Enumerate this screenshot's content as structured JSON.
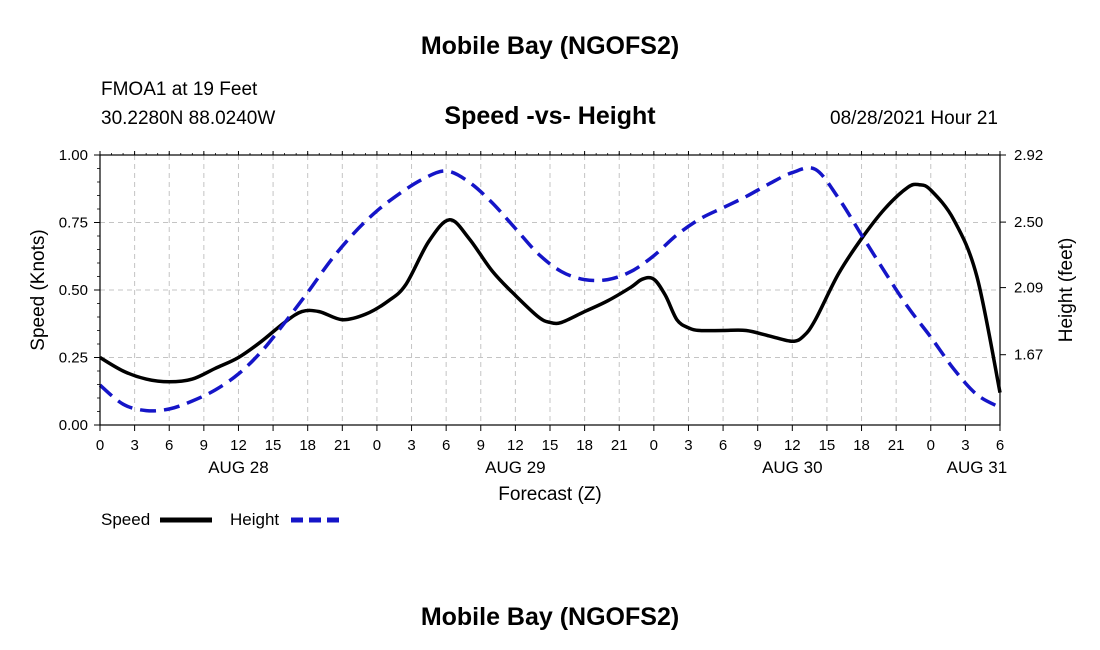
{
  "header": {
    "title_top": "Mobile Bay (NGOFS2)",
    "station": "FMOA1 at 19 Feet",
    "coords": "30.2280N  88.0240W",
    "subtitle": "Speed -vs- Height",
    "datetime": "08/28/2021 Hour 21",
    "title_bottom": "Mobile Bay (NGOFS2)"
  },
  "chart_data": {
    "type": "line",
    "title": "Speed -vs- Height",
    "xlabel": "Forecast (Z)",
    "ylabel": "Speed (Knots)",
    "y2label": "Height (feet)",
    "x_range_hours": [
      0,
      78
    ],
    "x_ticks": [
      {
        "h": 0,
        "label": "0"
      },
      {
        "h": 3,
        "label": "3"
      },
      {
        "h": 6,
        "label": "6"
      },
      {
        "h": 9,
        "label": "9"
      },
      {
        "h": 12,
        "label": "12"
      },
      {
        "h": 15,
        "label": "15"
      },
      {
        "h": 18,
        "label": "18"
      },
      {
        "h": 21,
        "label": "21"
      },
      {
        "h": 24,
        "label": "0"
      },
      {
        "h": 27,
        "label": "3"
      },
      {
        "h": 30,
        "label": "6"
      },
      {
        "h": 33,
        "label": "9"
      },
      {
        "h": 36,
        "label": "12"
      },
      {
        "h": 39,
        "label": "15"
      },
      {
        "h": 42,
        "label": "18"
      },
      {
        "h": 45,
        "label": "21"
      },
      {
        "h": 48,
        "label": "0"
      },
      {
        "h": 51,
        "label": "3"
      },
      {
        "h": 54,
        "label": "6"
      },
      {
        "h": 57,
        "label": "9"
      },
      {
        "h": 60,
        "label": "12"
      },
      {
        "h": 63,
        "label": "15"
      },
      {
        "h": 66,
        "label": "18"
      },
      {
        "h": 69,
        "label": "21"
      },
      {
        "h": 72,
        "label": "0"
      },
      {
        "h": 75,
        "label": "3"
      },
      {
        "h": 78,
        "label": "6"
      }
    ],
    "date_labels": [
      {
        "h": 12,
        "label": "AUG 28"
      },
      {
        "h": 36,
        "label": "AUG 29"
      },
      {
        "h": 60,
        "label": "AUG 30"
      },
      {
        "h": 76,
        "label": "AUG 31"
      }
    ],
    "ylim": [
      0,
      1
    ],
    "y_ticks": [
      {
        "v": 0.0,
        "label": "0.00"
      },
      {
        "v": 0.25,
        "label": "0.25"
      },
      {
        "v": 0.5,
        "label": "0.50"
      },
      {
        "v": 0.75,
        "label": "0.75"
      },
      {
        "v": 1.0,
        "label": "1.00"
      }
    ],
    "y2lim": [
      1.23,
      2.92
    ],
    "y2_ticks": [
      {
        "v": 1.67,
        "label": "1.67"
      },
      {
        "v": 2.09,
        "label": "2.09"
      },
      {
        "v": 2.5,
        "label": "2.50"
      },
      {
        "v": 2.92,
        "label": "2.92"
      }
    ],
    "series": [
      {
        "name": "Speed",
        "axis": "left",
        "color": "#000000",
        "dash": "solid",
        "x": [
          0,
          2,
          4,
          6,
          8,
          10,
          12,
          14,
          16,
          17.5,
          19,
          21,
          23,
          25,
          26.5,
          28.5,
          30.3,
          32,
          34,
          36,
          38,
          39,
          40,
          42,
          44,
          46,
          47,
          48,
          49,
          50,
          51,
          52,
          54,
          56,
          58,
          60,
          61,
          62,
          64,
          66,
          68,
          70,
          71,
          72,
          74,
          76,
          78
        ],
        "values": [
          0.25,
          0.2,
          0.17,
          0.16,
          0.17,
          0.21,
          0.25,
          0.31,
          0.38,
          0.42,
          0.42,
          0.39,
          0.41,
          0.46,
          0.52,
          0.68,
          0.76,
          0.69,
          0.57,
          0.48,
          0.4,
          0.38,
          0.38,
          0.42,
          0.46,
          0.51,
          0.54,
          0.54,
          0.48,
          0.39,
          0.36,
          0.35,
          0.35,
          0.35,
          0.33,
          0.31,
          0.33,
          0.39,
          0.56,
          0.69,
          0.8,
          0.88,
          0.89,
          0.87,
          0.76,
          0.55,
          0.12
        ]
      },
      {
        "name": "Height",
        "axis": "right",
        "color": "#1515c8",
        "dash": "dashed",
        "x": [
          0,
          2,
          4,
          6,
          8,
          10,
          12,
          14,
          16,
          18,
          20,
          22,
          24,
          26,
          28,
          30,
          32,
          34,
          36,
          38,
          40,
          42,
          44,
          46,
          48,
          50,
          52,
          54,
          56,
          58,
          60,
          62,
          64,
          66,
          68,
          70,
          72,
          74,
          76,
          78
        ],
        "values": [
          1.48,
          1.36,
          1.32,
          1.33,
          1.38,
          1.45,
          1.55,
          1.69,
          1.87,
          2.06,
          2.26,
          2.43,
          2.57,
          2.68,
          2.77,
          2.82,
          2.75,
          2.62,
          2.46,
          2.3,
          2.19,
          2.14,
          2.14,
          2.19,
          2.29,
          2.42,
          2.52,
          2.59,
          2.66,
          2.74,
          2.81,
          2.83,
          2.65,
          2.42,
          2.19,
          1.97,
          1.78,
          1.58,
          1.42,
          1.34
        ]
      }
    ]
  },
  "legend": {
    "speed_label": "Speed",
    "height_label": "Height"
  }
}
